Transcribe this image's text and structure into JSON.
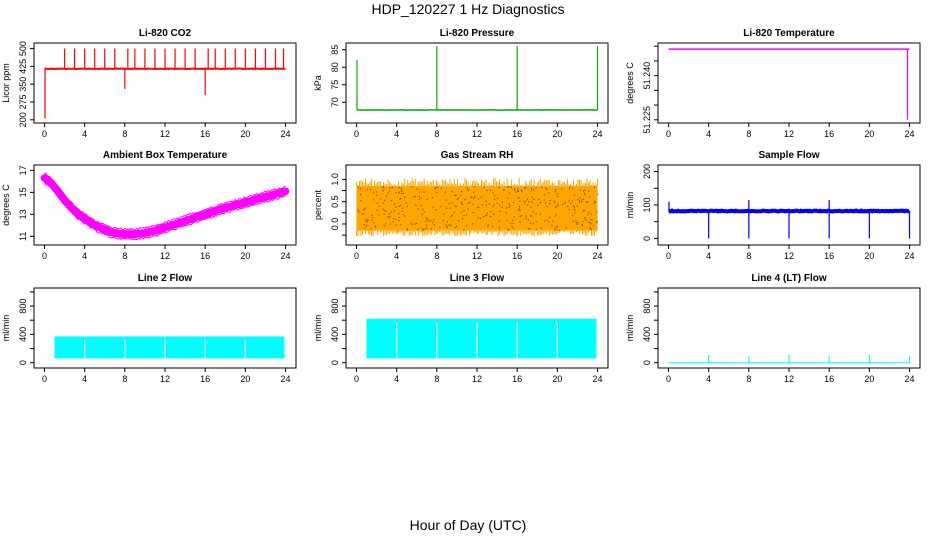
{
  "title": "HDP_120227  1 Hz Diagnostics",
  "x_caption": "Hour of Day (UTC)",
  "chart_data": [
    {
      "id": "co2",
      "type": "line",
      "title": "Li-820 CO2",
      "ylabel": "Licor ppm",
      "color": "#ff0000",
      "xlim": [
        0,
        24
      ],
      "ylim": [
        200,
        510
      ],
      "xticks": [
        0,
        4,
        8,
        12,
        16,
        20,
        24
      ],
      "yticks": [
        200,
        275,
        350,
        425,
        500
      ],
      "ytick_labels": [
        "200",
        "275",
        "350",
        "425",
        "500"
      ],
      "baseline": 415,
      "noise": 4,
      "band_width": 2,
      "events": [
        [
          2,
          500,
          "up"
        ],
        [
          3,
          500,
          "up"
        ],
        [
          4,
          500,
          "up"
        ],
        [
          5,
          500,
          "up"
        ],
        [
          6,
          500,
          "up"
        ],
        [
          7,
          500,
          "up"
        ],
        [
          8,
          330,
          "down"
        ],
        [
          8.3,
          500,
          "up"
        ],
        [
          9,
          500,
          "up"
        ],
        [
          10,
          500,
          "up"
        ],
        [
          11,
          500,
          "up"
        ],
        [
          12,
          500,
          "up"
        ],
        [
          13,
          500,
          "up"
        ],
        [
          14,
          500,
          "up"
        ],
        [
          15,
          500,
          "up"
        ],
        [
          16,
          305,
          "down"
        ],
        [
          16.3,
          500,
          "up"
        ],
        [
          17,
          500,
          "up"
        ],
        [
          18,
          500,
          "up"
        ],
        [
          19,
          500,
          "up"
        ],
        [
          20,
          500,
          "up"
        ],
        [
          21,
          500,
          "up"
        ],
        [
          22,
          500,
          "up"
        ],
        [
          23,
          500,
          "up"
        ],
        [
          23.8,
          500,
          "up"
        ]
      ],
      "start_spike": 205
    },
    {
      "id": "pressure",
      "type": "line",
      "title": "Li-820 Pressure",
      "ylabel": "kPa",
      "color": "#00aa00",
      "xlim": [
        0,
        24
      ],
      "ylim": [
        65,
        86
      ],
      "xticks": [
        0,
        4,
        8,
        12,
        16,
        20,
        24
      ],
      "yticks": [
        70,
        75,
        80,
        85
      ],
      "ytick_labels": [
        "70",
        "75",
        "80",
        "85"
      ],
      "baseline": 67.8,
      "noise": 0.15,
      "band_width": 1.5,
      "events": [
        [
          8,
          86,
          "up"
        ],
        [
          16,
          86,
          "up"
        ],
        [
          24,
          86,
          "up"
        ]
      ],
      "start_spike": 82
    },
    {
      "id": "temperature",
      "type": "line",
      "title": "Li-820 Temperature",
      "ylabel": "degrees C",
      "color": "#ff00ff",
      "xlim": [
        0,
        24
      ],
      "ylim": [
        51.225,
        51.25
      ],
      "xticks": [
        0,
        4,
        8,
        12,
        16,
        20,
        24
      ],
      "yticks": [
        51.225,
        51.23,
        51.235,
        51.24,
        51.245,
        51.25
      ],
      "ytick_labels": [
        "51.225",
        "",
        "",
        "51.240",
        "",
        ""
      ],
      "baseline": 51.249,
      "noise": 0,
      "band_width": 1.5,
      "events": [
        [
          23.8,
          51.225,
          "down"
        ]
      ],
      "start_spike": null
    },
    {
      "id": "ambient",
      "type": "line",
      "title": "Ambient Box Temperature",
      "ylabel": "degrees C",
      "color": "#ff00ff",
      "xlim": [
        0,
        24
      ],
      "ylim": [
        10.5,
        17.2
      ],
      "xticks": [
        0,
        4,
        8,
        12,
        16,
        20,
        24
      ],
      "yticks": [
        11,
        13,
        15,
        17
      ],
      "ytick_labels": [
        "11",
        "13",
        "15",
        "17"
      ],
      "x": [
        0,
        0.5,
        1,
        1.5,
        2,
        2.5,
        3,
        3.5,
        4,
        4.5,
        5,
        5.5,
        6,
        6.5,
        7,
        7.5,
        8,
        8.5,
        9,
        9.5,
        10,
        10.5,
        11,
        11.5,
        12,
        12.5,
        13,
        13.5,
        14,
        14.5,
        15,
        15.5,
        16,
        16.5,
        17,
        17.5,
        18,
        18.5,
        19,
        19.5,
        20,
        20.5,
        21,
        21.5,
        22,
        22.5,
        23,
        23.5,
        24
      ],
      "values": [
        16.3,
        16.0,
        15.5,
        14.9,
        14.3,
        13.8,
        13.3,
        12.9,
        12.6,
        12.3,
        12.0,
        11.8,
        11.6,
        11.4,
        11.3,
        11.25,
        11.2,
        11.2,
        11.2,
        11.25,
        11.3,
        11.4,
        11.5,
        11.65,
        11.8,
        11.95,
        12.1,
        12.25,
        12.4,
        12.55,
        12.7,
        12.85,
        13.0,
        13.15,
        13.3,
        13.45,
        13.6,
        13.7,
        13.85,
        13.95,
        14.1,
        14.2,
        14.35,
        14.45,
        14.6,
        14.7,
        14.85,
        14.95,
        15.1
      ],
      "band_width": 0.7
    },
    {
      "id": "rh",
      "type": "scatter",
      "title": "Gas Stream RH",
      "ylabel": "percent",
      "color": "#ffa500",
      "edge_color": "#7a5a00",
      "xlim": [
        0,
        24
      ],
      "ylim": [
        -0.4,
        1.25
      ],
      "xticks": [
        0,
        4,
        8,
        12,
        16,
        20,
        24
      ],
      "yticks": [
        0,
        0.5,
        1.0
      ],
      "ytick_labels": [
        "0.0",
        "0.5",
        "1.0"
      ],
      "minor_yticks": [
        -0.25,
        0.25,
        0.75
      ],
      "band_low": -0.15,
      "band_high": 0.85
    },
    {
      "id": "sample_flow",
      "type": "line",
      "title": "Sample Flow",
      "ylabel": "ml/min",
      "color": "#0000ff",
      "xlim": [
        0,
        24
      ],
      "ylim": [
        -10,
        210
      ],
      "xticks": [
        0,
        4,
        8,
        12,
        16,
        20,
        24
      ],
      "yticks": [
        0,
        100,
        200
      ],
      "ytick_labels": [
        "0",
        "100",
        "200"
      ],
      "minor_yticks": [
        50,
        150
      ],
      "baseline": 82,
      "noise": 4,
      "band_width": 4,
      "events": [
        [
          4,
          0,
          "down"
        ],
        [
          8,
          0,
          "down"
        ],
        [
          8,
          115,
          "up"
        ],
        [
          12,
          0,
          "down"
        ],
        [
          16,
          0,
          "down"
        ],
        [
          16,
          115,
          "up"
        ],
        [
          20,
          0,
          "down"
        ],
        [
          24,
          0,
          "down"
        ]
      ],
      "start_spike": 110
    },
    {
      "id": "line2",
      "type": "area",
      "title": "Line 2 Flow",
      "ylabel": "ml/min",
      "color": "#00ffff",
      "xlim": [
        0,
        24
      ],
      "ylim": [
        -30,
        1010
      ],
      "xticks": [
        0,
        4,
        8,
        12,
        16,
        20,
        24
      ],
      "yticks": [
        0,
        400,
        800
      ],
      "ytick_labels": [
        "0",
        "400",
        "800"
      ],
      "minor_yticks": [
        200,
        600,
        1000
      ],
      "low": 60,
      "high": 370,
      "gaps": [
        4,
        8,
        12,
        16,
        20,
        24
      ]
    },
    {
      "id": "line3",
      "type": "area",
      "title": "Line 3 Flow",
      "ylabel": "ml/min",
      "color": "#00ffff",
      "xlim": [
        0,
        24
      ],
      "ylim": [
        -30,
        1010
      ],
      "xticks": [
        0,
        4,
        8,
        12,
        16,
        20,
        24
      ],
      "yticks": [
        0,
        400,
        800
      ],
      "ytick_labels": [
        "0",
        "400",
        "800"
      ],
      "minor_yticks": [
        200,
        600,
        1000
      ],
      "low": 60,
      "high": 620,
      "gaps": [
        4,
        8,
        12,
        16,
        20,
        24
      ]
    },
    {
      "id": "line4",
      "type": "line",
      "title": "Line 4 (LT) Flow",
      "ylabel": "ml/min",
      "color": "#00ffff",
      "xlim": [
        0,
        24
      ],
      "ylim": [
        -30,
        1010
      ],
      "xticks": [
        0,
        4,
        8,
        12,
        16,
        20,
        24
      ],
      "yticks": [
        0,
        400,
        800
      ],
      "ytick_labels": [
        "0",
        "400",
        "800"
      ],
      "minor_yticks": [
        200,
        600,
        1000
      ],
      "baseline": 0,
      "noise": 0,
      "band_width": 1,
      "events": [
        [
          4,
          110,
          "up"
        ],
        [
          8,
          90,
          "up"
        ],
        [
          12,
          110,
          "up"
        ],
        [
          16,
          90,
          "up"
        ],
        [
          20,
          110,
          "up"
        ],
        [
          24,
          90,
          "up"
        ]
      ],
      "start_spike": null
    }
  ]
}
